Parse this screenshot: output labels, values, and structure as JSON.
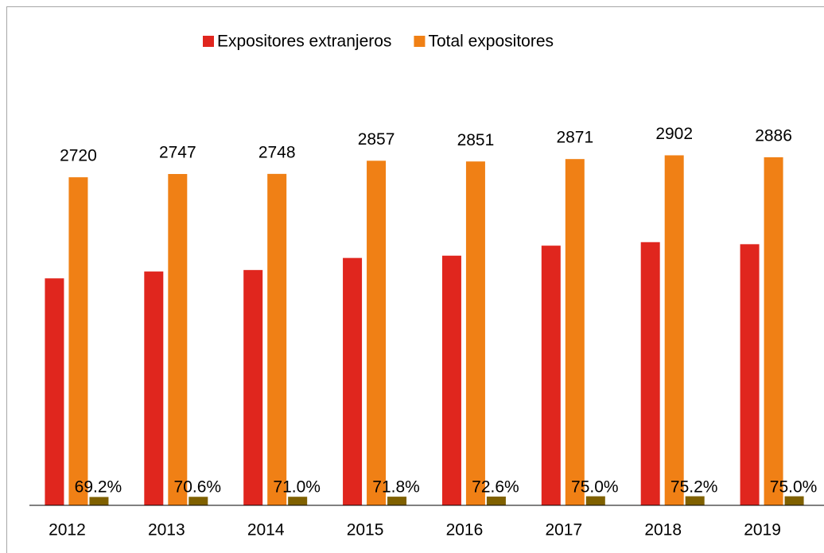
{
  "chart_data": {
    "type": "bar",
    "categories": [
      "2012",
      "2013",
      "2014",
      "2015",
      "2016",
      "2017",
      "2018",
      "2019"
    ],
    "series": [
      {
        "name": "Expositores extranjeros",
        "color": "#e0261e",
        "values": [
          1882,
          1939,
          1951,
          2051,
          2070,
          2153,
          2182,
          2165
        ]
      },
      {
        "name": "Total expositores",
        "color": "#f08015",
        "values": [
          2720,
          2747,
          2748,
          2857,
          2851,
          2871,
          2902,
          2886
        ]
      },
      {
        "color": "#7f6000",
        "values": [
          69.2,
          70.6,
          71.0,
          71.8,
          72.6,
          75.0,
          75.2,
          75.0
        ],
        "value_labels": [
          "69.2%",
          "70.6%",
          "71.0%",
          "71.8%",
          "72.6%",
          "75.0%",
          "75.2%",
          "75.0%"
        ]
      }
    ],
    "ylim": [
      0,
      3500
    ],
    "legend": "top"
  }
}
